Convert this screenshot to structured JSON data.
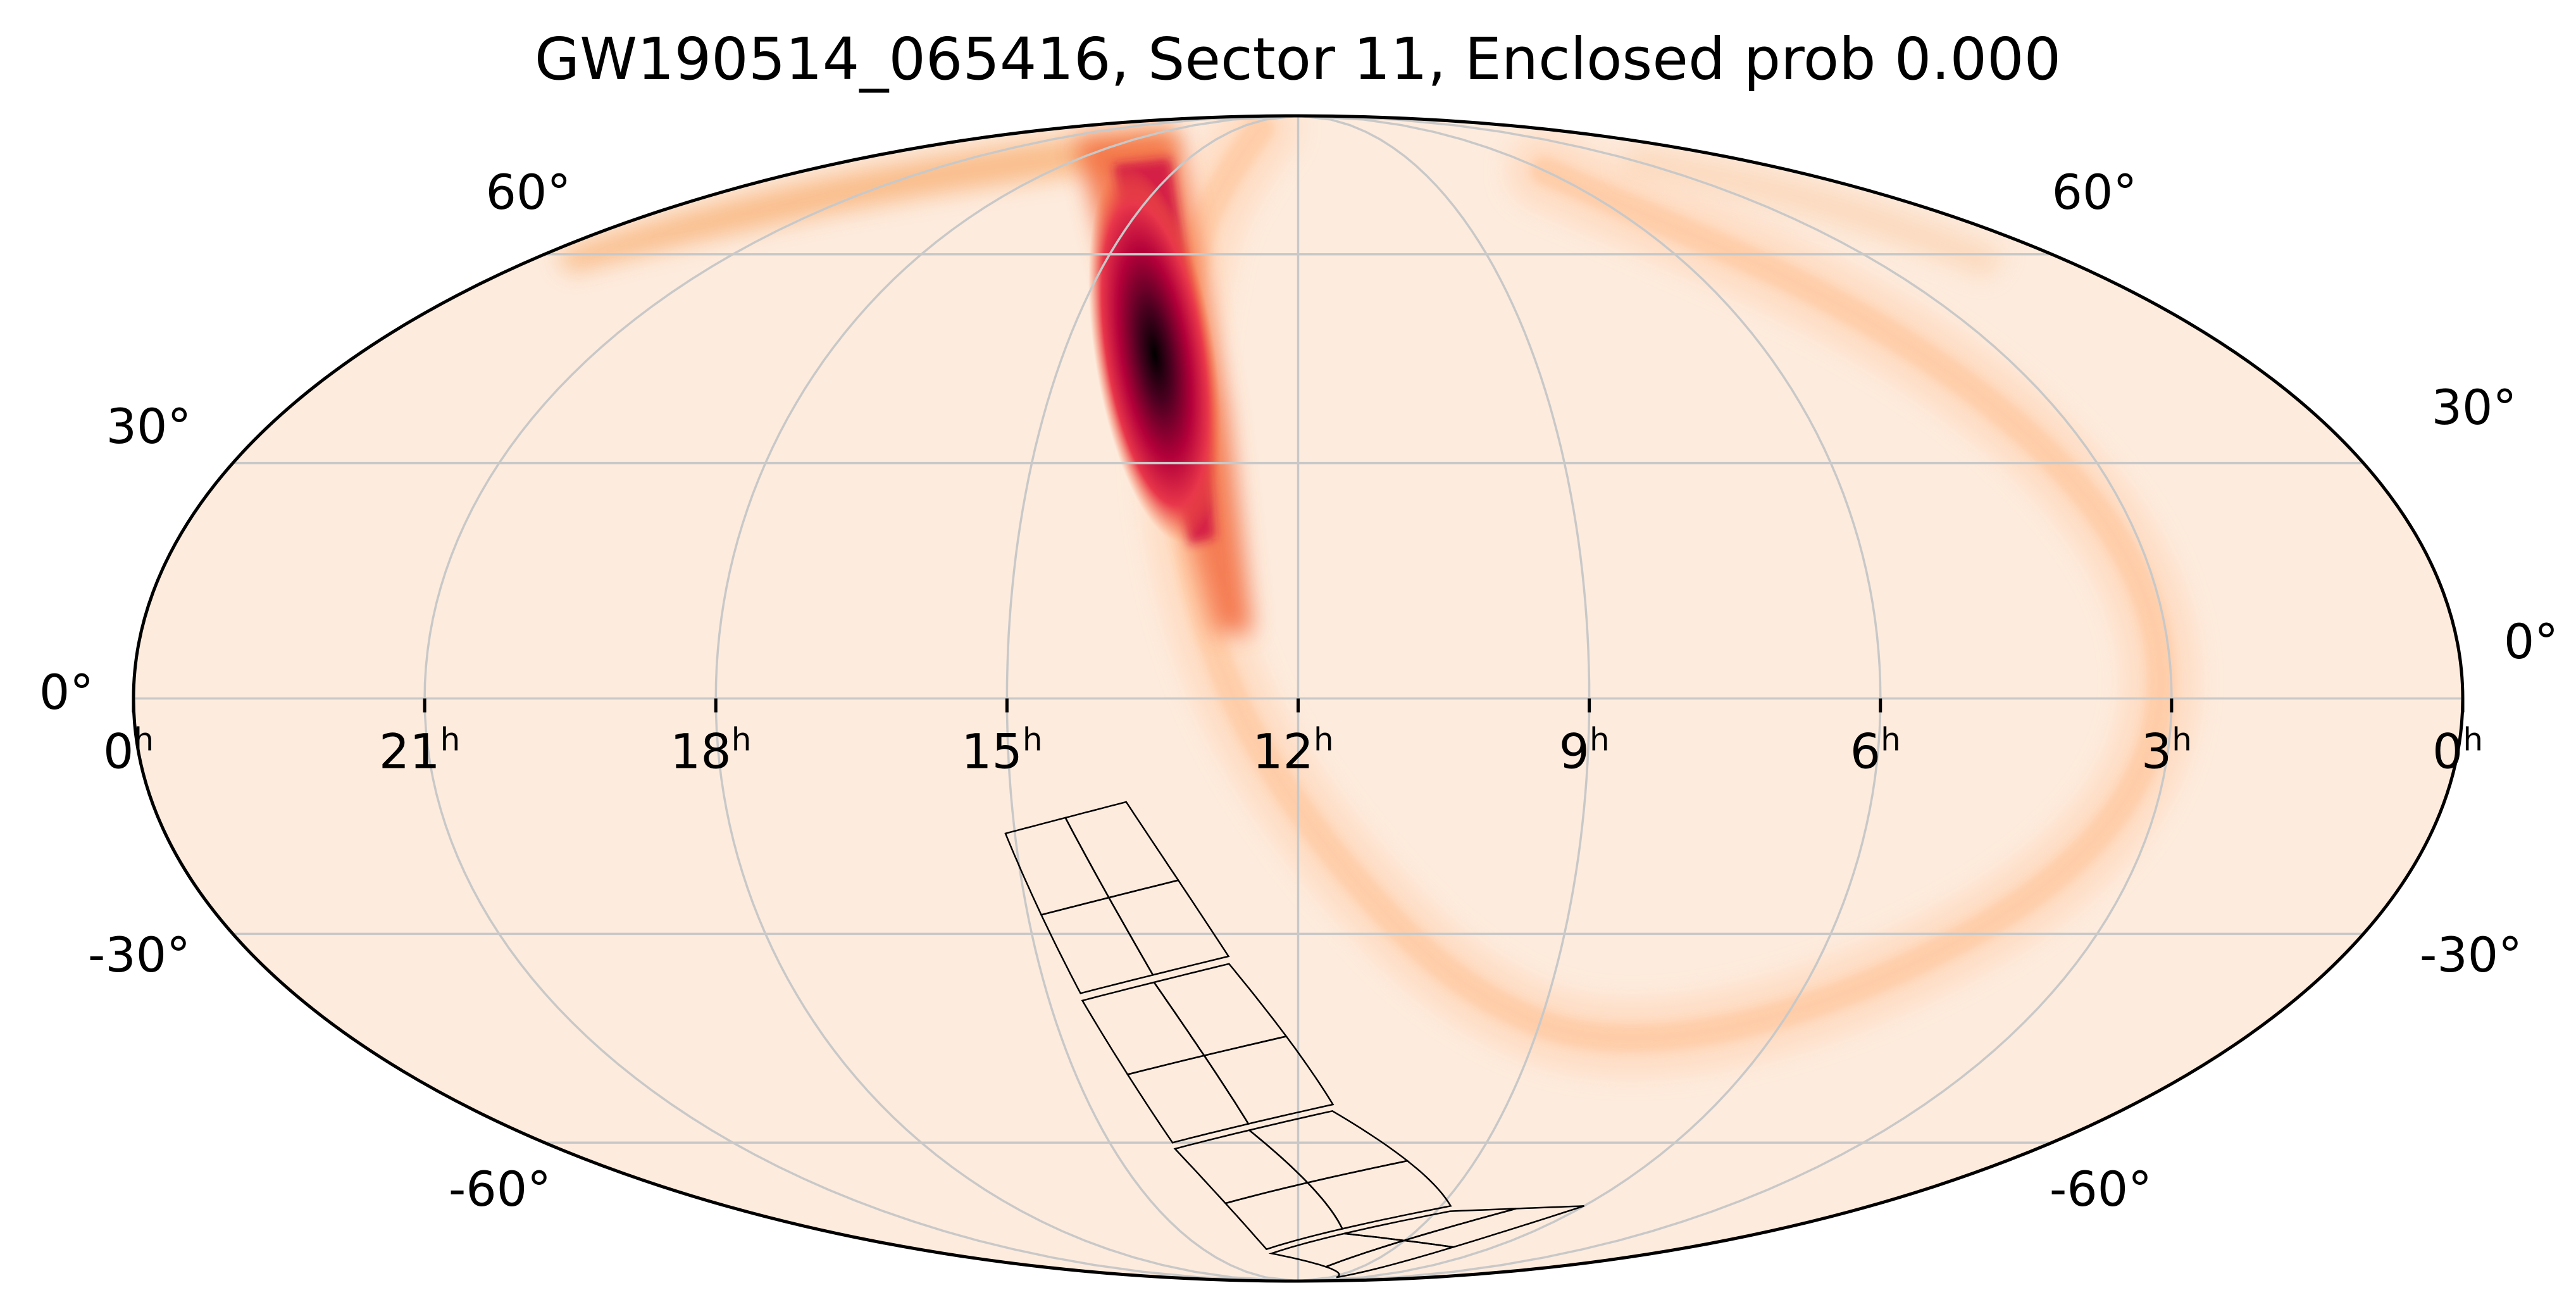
{
  "title": "GW190514_065416, Sector 11, Enclosed prob 0.000",
  "chart_data": {
    "type": "heatmap",
    "projection": "mollweide",
    "colormap": "sequential light peach to dark crimson/black",
    "grid": true,
    "ra_ticks": [
      "0",
      "21",
      "18",
      "15",
      "12",
      "9",
      "6",
      "3",
      "0"
    ],
    "ra_tick_suffix": "h",
    "ra_tick_values_hours": [
      24,
      21,
      18,
      15,
      12,
      9,
      6,
      3,
      0
    ],
    "dec_ticks_left": [
      "60°",
      "30°",
      "0°",
      "-30°",
      "-60°"
    ],
    "dec_ticks_right": [
      "60°",
      "30°",
      "0°",
      "-30°",
      "-60°"
    ],
    "dec_tick_values_deg": [
      60,
      30,
      0,
      -30,
      -60
    ],
    "probability_peak": {
      "ra_hours": 13.6,
      "dec_deg": 40
    },
    "probability_arc": [
      {
        "ra_hours": 13.9,
        "dec_deg": 85
      },
      {
        "ra_hours": 13.8,
        "dec_deg": 70
      },
      {
        "ra_hours": 13.6,
        "dec_deg": 55
      },
      {
        "ra_hours": 13.5,
        "dec_deg": 40
      },
      {
        "ra_hours": 13.3,
        "dec_deg": 25
      },
      {
        "ra_hours": 13.0,
        "dec_deg": 10
      },
      {
        "ra_hours": 12.5,
        "dec_deg": -5
      },
      {
        "ra_hours": 11.5,
        "dec_deg": -22
      },
      {
        "ra_hours": 10.0,
        "dec_deg": -38
      },
      {
        "ra_hours": 8.0,
        "dec_deg": -46
      },
      {
        "ra_hours": 5.5,
        "dec_deg": -40
      },
      {
        "ra_hours": 3.5,
        "dec_deg": -22
      },
      {
        "ra_hours": 2.9,
        "dec_deg": 0
      },
      {
        "ra_hours": 3.1,
        "dec_deg": 25
      },
      {
        "ra_hours": 4.0,
        "dec_deg": 50
      },
      {
        "ra_hours": 6.0,
        "dec_deg": 75
      }
    ],
    "tess_sector": "11",
    "enclosed_probability": "0.000"
  }
}
